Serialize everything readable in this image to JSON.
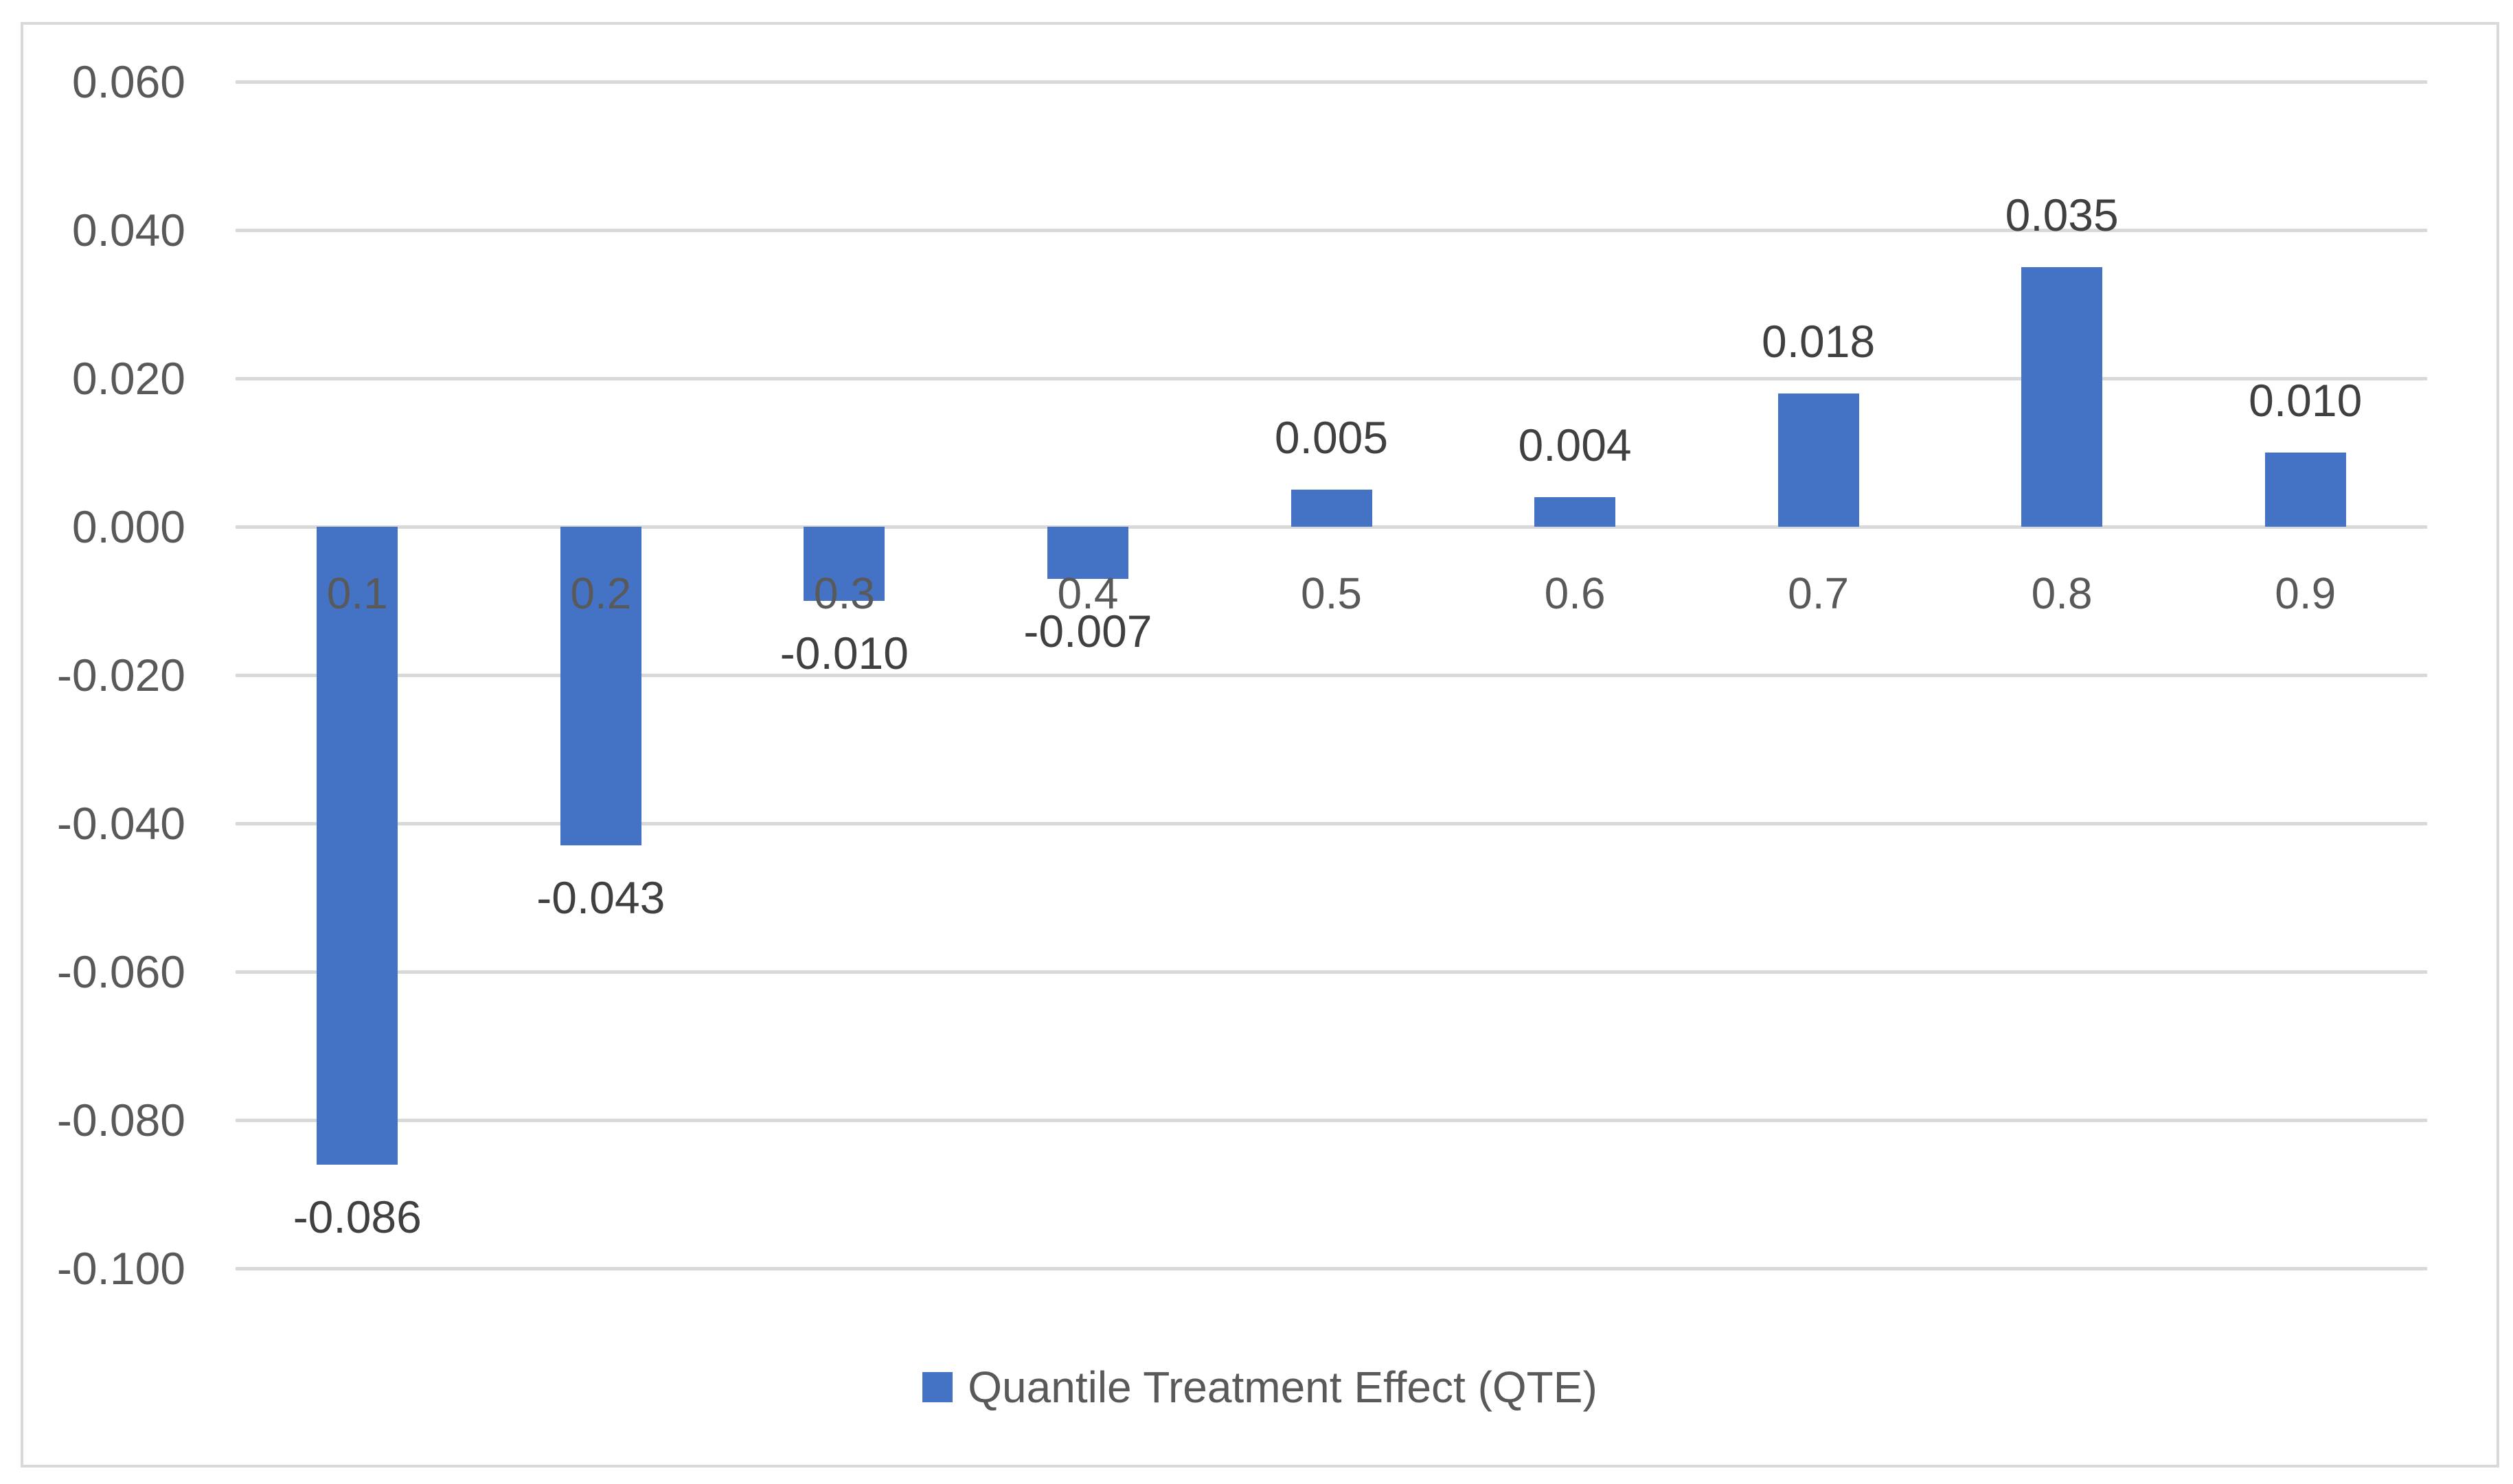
{
  "chart_data": {
    "type": "bar",
    "title": "",
    "categories": [
      "0.1",
      "0.2",
      "0.3",
      "0.4",
      "0.5",
      "0.6",
      "0.7",
      "0.8",
      "0.9"
    ],
    "series": [
      {
        "name": "Quantile Treatment Effect (QTE)",
        "values": [
          -0.086,
          -0.043,
          -0.01,
          -0.007,
          0.005,
          0.004,
          0.018,
          0.035,
          0.01
        ]
      }
    ],
    "data_labels": [
      "-0.086",
      "-0.043",
      "-0.010",
      "-0.007",
      "0.005",
      "0.004",
      "0.018",
      "0.035",
      "0.010"
    ],
    "ytick_values": [
      0.06,
      0.04,
      0.02,
      0.0,
      -0.02,
      -0.04,
      -0.06,
      -0.08,
      -0.1
    ],
    "ytick_labels": [
      "0.060",
      "0.040",
      "0.020",
      "0.000",
      "-0.020",
      "-0.040",
      "-0.060",
      "-0.080",
      "-0.100"
    ],
    "ylim": [
      -0.1,
      0.06
    ],
    "grid": true,
    "legend_position": "bottom",
    "legend_label": "Quantile Treatment Effect (QTE)"
  },
  "colors": {
    "bar": "#4472C4",
    "gridline": "#D9D9D9",
    "frame_border": "#D9D9D9",
    "axis_label": "#595959",
    "category_label": "#595959",
    "data_label": "#404040",
    "legend_text": "#595959",
    "background": "#FFFFFF"
  }
}
